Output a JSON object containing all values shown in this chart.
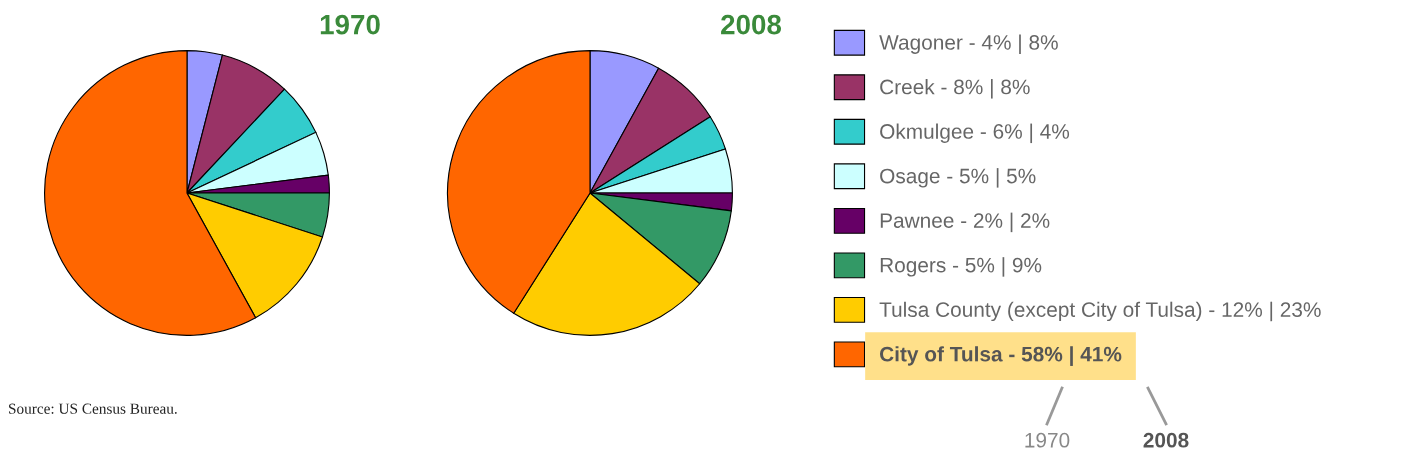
{
  "chart_data": [
    {
      "type": "pie",
      "title": "1970",
      "categories": [
        "Wagoner - 4% | 8%",
        "Creek - 8% | 8%",
        "Okmulgee - 6% | 4%",
        "Osage - 5% | 5%",
        "Pawnee - 2% | 2%",
        "Rogers - 5% | 9%",
        "Tulsa County (except City of Tulsa) - 12% | 23%",
        "City of Tulsa - 58% | 41%"
      ],
      "values": [
        4,
        8,
        6,
        5,
        2,
        5,
        12,
        58
      ],
      "colors": [
        "#9999ff",
        "#993366",
        "#33cccc",
        "#ccffff",
        "#660066",
        "#339966",
        "#ffcc00",
        "#ff6600"
      ],
      "legend": "right",
      "annotations": [
        "Source: US Census Bureau."
      ]
    },
    {
      "type": "pie",
      "title": "2008",
      "categories": [
        null,
        null,
        null,
        null,
        null,
        null,
        null,
        null
      ],
      "values": [
        8,
        8,
        4,
        5,
        2,
        9,
        23,
        41
      ],
      "colors": [
        "#9999ff",
        "#993366",
        "#33cccc",
        "#ccffff",
        "#660066",
        "#339966",
        "#ffcc00",
        "#ff6600"
      ],
      "annotations": [
        "1970",
        "2008"
      ]
    }
  ]
}
